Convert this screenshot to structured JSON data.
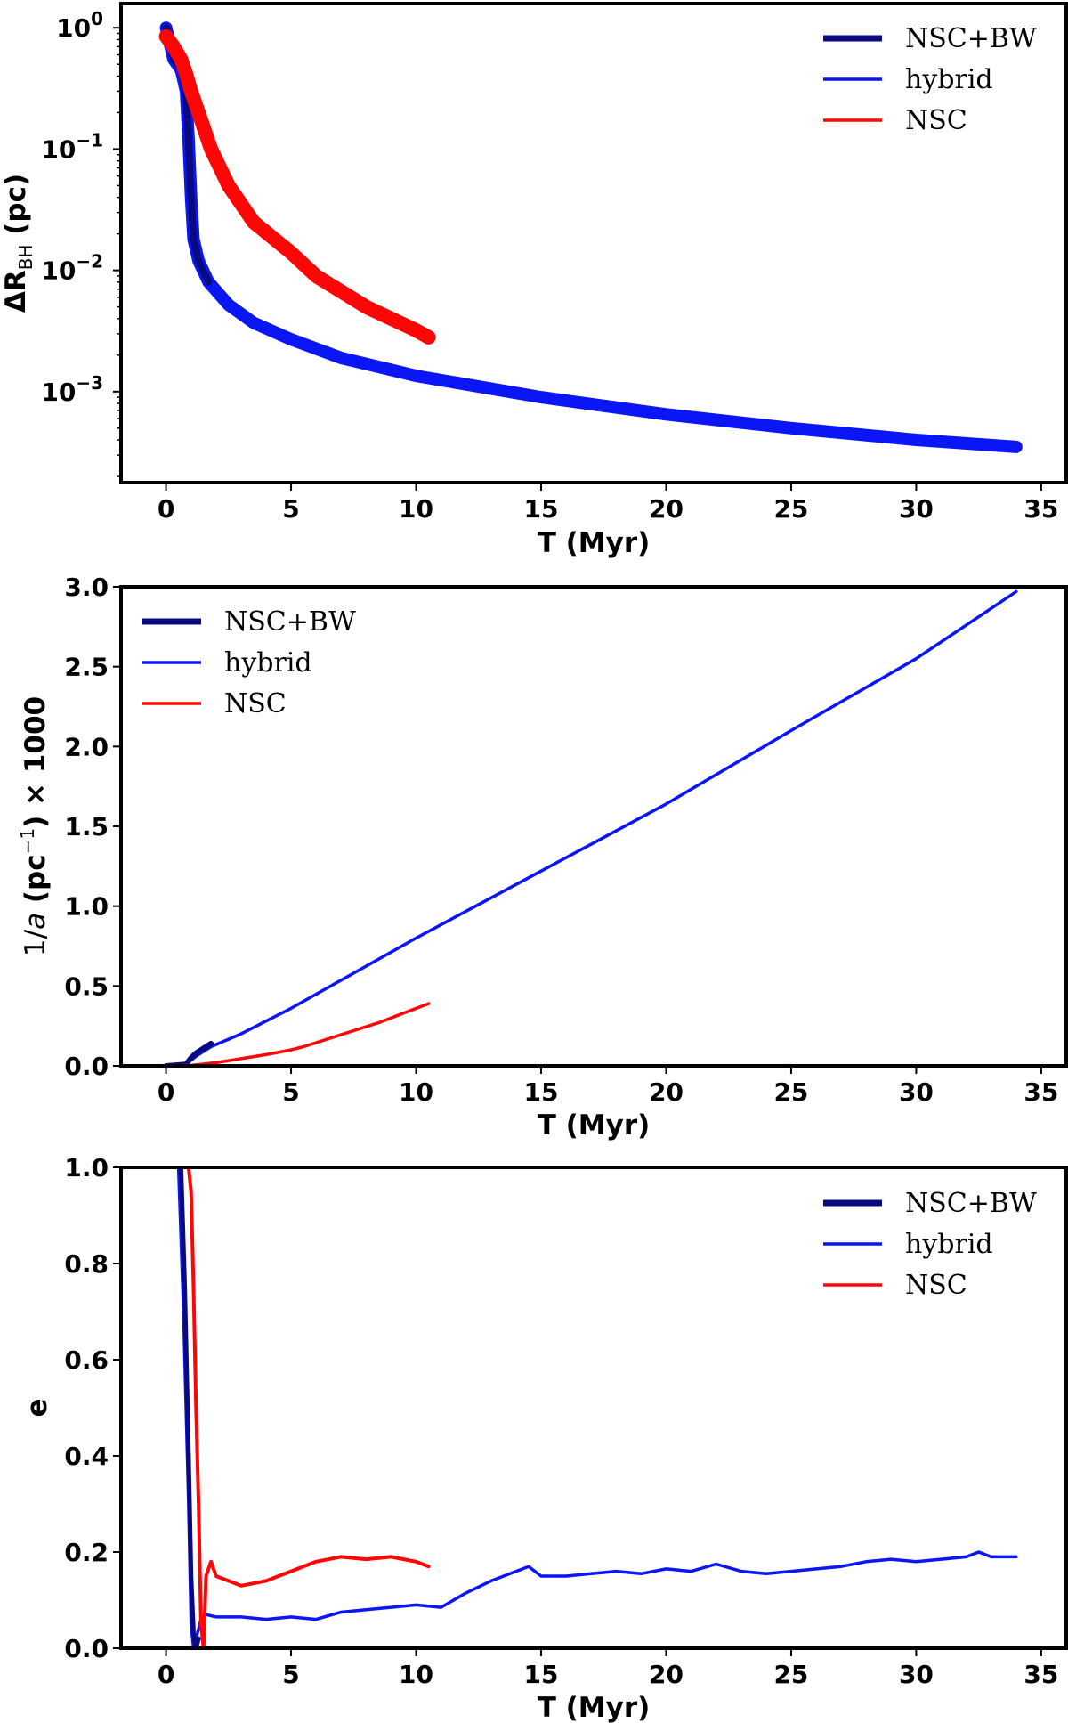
{
  "chart_data": [
    {
      "type": "line",
      "yscale": "log",
      "xlabel": "T (Myr)",
      "ylabel": "ΔR",
      "ylabel_sub": "BH",
      "ylabel_unit": "(pc)",
      "xlim": [
        -1.8,
        36
      ],
      "ylim_log10": [
        -3.75,
        0.2
      ],
      "xticks": [
        "0",
        "5",
        "10",
        "15",
        "20",
        "25",
        "30",
        "35"
      ],
      "yticks": [
        {
          "base": "10",
          "exp": "0",
          "v": 0
        },
        {
          "base": "10",
          "exp": "−1",
          "v": -1
        },
        {
          "base": "10",
          "exp": "−2",
          "v": -2
        },
        {
          "base": "10",
          "exp": "−3",
          "v": -3
        }
      ],
      "legend": {
        "position": "top-right",
        "entries": [
          "NSC+BW",
          "hybrid",
          "NSC"
        ]
      },
      "series": [
        {
          "name": "hybrid",
          "color": "#0a16f5",
          "width": 14,
          "x": [
            0,
            0.3,
            0.6,
            0.8,
            0.9,
            1.0,
            1.1,
            1.3,
            1.7,
            2.5,
            3.5,
            5,
            7,
            10,
            15,
            20,
            25,
            30,
            34
          ],
          "y": [
            1.0,
            0.55,
            0.45,
            0.3,
            0.12,
            0.04,
            0.018,
            0.012,
            0.008,
            0.0052,
            0.0037,
            0.0027,
            0.0019,
            0.00135,
            0.0009,
            0.00065,
            0.0005,
            0.0004,
            0.00035
          ]
        },
        {
          "name": "NSC+BW",
          "color": "#0a0a80",
          "width": 8,
          "x": [
            0,
            0.3,
            0.6,
            0.8,
            0.9,
            1.0,
            1.1,
            1.3,
            1.7
          ],
          "y": [
            1.0,
            0.55,
            0.45,
            0.3,
            0.12,
            0.04,
            0.018,
            0.012,
            0.008
          ]
        },
        {
          "name": "NSC",
          "color": "#ff0505",
          "width": 16,
          "x": [
            0,
            0.3,
            0.6,
            0.8,
            1.0,
            1.3,
            1.8,
            2.5,
            3.5,
            5,
            6,
            8,
            10,
            10.5
          ],
          "y": [
            0.85,
            0.7,
            0.55,
            0.42,
            0.3,
            0.2,
            0.1,
            0.05,
            0.025,
            0.014,
            0.009,
            0.005,
            0.0032,
            0.0028
          ]
        }
      ]
    },
    {
      "type": "line",
      "xlabel": "T (Myr)",
      "ylabel": "1/a (pc⁻¹) × 1000",
      "ylabel_pre": "1/",
      "ylabel_a": "a",
      "ylabel_mid": " (pc",
      "ylabel_exp": "−1",
      "ylabel_post": ") × 1000",
      "xlim": [
        -1.8,
        36
      ],
      "ylim": [
        0,
        3.0
      ],
      "xticks": [
        "0",
        "5",
        "10",
        "15",
        "20",
        "25",
        "30",
        "35"
      ],
      "yticks": [
        "0.0",
        "0.5",
        "1.0",
        "1.5",
        "2.0",
        "2.5",
        "3.0"
      ],
      "legend": {
        "position": "top-left",
        "entries": [
          "NSC+BW",
          "hybrid",
          "NSC"
        ]
      },
      "series": [
        {
          "name": "hybrid",
          "color": "#0a16f5",
          "width": 3.5,
          "x": [
            0,
            0.8,
            1.2,
            1.8,
            3,
            5,
            10,
            15,
            20,
            25,
            30,
            34
          ],
          "y": [
            0,
            0.01,
            0.06,
            0.12,
            0.2,
            0.36,
            0.8,
            1.22,
            1.64,
            2.1,
            2.55,
            2.97
          ]
        },
        {
          "name": "NSC+BW",
          "color": "#0a0a80",
          "width": 6,
          "x": [
            0,
            0.8,
            1.0,
            1.2,
            1.5,
            1.8
          ],
          "y": [
            0,
            0.01,
            0.05,
            0.08,
            0.11,
            0.14
          ]
        },
        {
          "name": "NSC",
          "color": "#ff0505",
          "width": 3.5,
          "x": [
            0,
            1,
            2,
            3,
            4,
            5,
            5.5,
            6.5,
            7.5,
            8.5,
            9.5,
            10.5
          ],
          "y": [
            0,
            0.003,
            0.02,
            0.045,
            0.07,
            0.1,
            0.12,
            0.17,
            0.22,
            0.27,
            0.33,
            0.39
          ]
        }
      ]
    },
    {
      "type": "line",
      "xlabel": "T (Myr)",
      "ylabel": "e",
      "xlim": [
        -1.8,
        36
      ],
      "ylim": [
        0,
        1.0
      ],
      "xticks": [
        "0",
        "5",
        "10",
        "15",
        "20",
        "25",
        "30",
        "35"
      ],
      "yticks": [
        "0.0",
        "0.2",
        "0.4",
        "0.6",
        "0.8",
        "1.0"
      ],
      "legend": {
        "position": "top-right",
        "entries": [
          "NSC+BW",
          "hybrid",
          "NSC"
        ]
      },
      "series": [
        {
          "name": "hybrid",
          "color": "#0a16f5",
          "width": 3.5,
          "x": [
            0.5,
            0.7,
            0.9,
            1.0,
            1.1,
            1.2,
            1.4,
            1.6,
            2,
            3,
            4,
            5,
            6,
            7,
            8,
            9,
            10,
            11,
            12,
            13,
            14,
            14.5,
            15,
            16,
            17,
            18,
            19,
            20,
            21,
            22,
            23,
            24,
            25,
            26,
            27,
            28,
            29,
            30,
            31,
            32,
            32.5,
            33,
            34
          ],
          "y": [
            1.0,
            0.7,
            0.3,
            0.05,
            0.0,
            0.02,
            0.06,
            0.07,
            0.065,
            0.065,
            0.06,
            0.065,
            0.06,
            0.075,
            0.08,
            0.085,
            0.09,
            0.085,
            0.115,
            0.14,
            0.16,
            0.17,
            0.15,
            0.15,
            0.155,
            0.16,
            0.155,
            0.165,
            0.16,
            0.175,
            0.16,
            0.155,
            0.16,
            0.165,
            0.17,
            0.18,
            0.185,
            0.18,
            0.185,
            0.19,
            0.2,
            0.19,
            0.19
          ]
        },
        {
          "name": "NSC+BW",
          "color": "#0a0a80",
          "width": 5,
          "x": [
            0.6,
            0.75,
            0.9,
            1.0,
            1.1,
            1.2,
            1.3
          ],
          "y": [
            1.0,
            0.75,
            0.4,
            0.15,
            0.03,
            0.0,
            0.02
          ]
        },
        {
          "name": "NSC",
          "color": "#ff0505",
          "width": 4,
          "x": [
            0.9,
            1.0,
            1.1,
            1.2,
            1.3,
            1.4,
            1.5,
            1.6,
            1.8,
            2,
            2.5,
            3,
            4,
            5,
            6,
            7,
            8,
            9,
            10,
            10.5
          ],
          "y": [
            1.0,
            0.95,
            0.75,
            0.5,
            0.3,
            0.05,
            0.0,
            0.15,
            0.18,
            0.15,
            0.14,
            0.13,
            0.14,
            0.16,
            0.18,
            0.19,
            0.185,
            0.19,
            0.18,
            0.17
          ]
        }
      ]
    }
  ]
}
